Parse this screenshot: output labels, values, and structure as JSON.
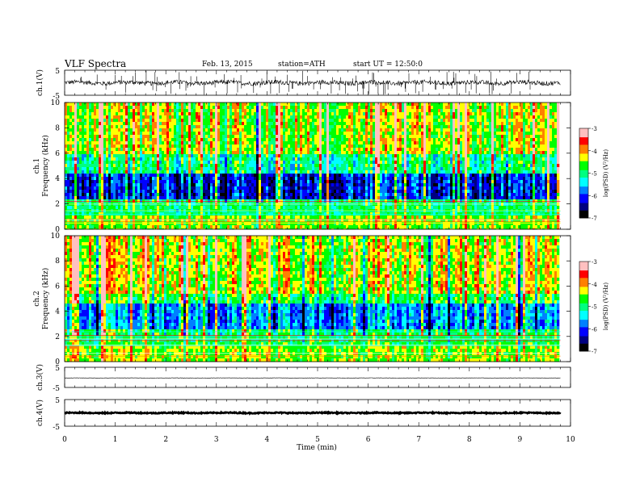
{
  "header": {
    "title": "VLF Spectra",
    "date": "Feb. 13, 2015",
    "station": "station=ATH",
    "start": "start UT =  12:50:0"
  },
  "x_axis": {
    "label": "Time (min)",
    "ticks": [
      "0",
      "1",
      "2",
      "3",
      "4",
      "5",
      "6",
      "7",
      "8",
      "9",
      "10"
    ],
    "range": [
      0,
      10
    ],
    "data_end": 9.8
  },
  "colors": {
    "ramp": [
      "#000000",
      "#000080",
      "#0000ff",
      "#0080ff",
      "#00ffff",
      "#00ff80",
      "#00ff00",
      "#ffff00",
      "#ff8000",
      "#ff0000",
      "#ffc0c0"
    ],
    "trace": "#000000",
    "background": "#ffffff"
  },
  "chart_data": [
    {
      "type": "line",
      "name": "ch.1 waveform",
      "ylabel": "ch.1(V)",
      "ylim": [
        -5,
        5
      ],
      "yticks": [
        "5",
        "-5"
      ],
      "baseline": 0,
      "amplitude": 0.9,
      "spikes": "frequent"
    },
    {
      "type": "heatmap",
      "name": "ch.1 spectrogram",
      "ylabel_top": "ch.1",
      "ylabel": "Frequency (kHz)",
      "ylim": [
        0,
        10
      ],
      "yticks": [
        "0",
        "2",
        "4",
        "6",
        "8",
        "10"
      ],
      "colorbar": {
        "label": "log(PSD) (V²/Hz)",
        "range": [
          -7,
          -3
        ],
        "ticks": [
          "-3",
          "-4",
          "-5",
          "-6",
          "-7"
        ]
      }
    },
    {
      "type": "heatmap",
      "name": "ch.2 spectrogram",
      "ylabel_top": "ch.2",
      "ylabel": "Frequency (kHz)",
      "ylim": [
        0,
        10
      ],
      "yticks": [
        "0",
        "2",
        "4",
        "6",
        "8",
        "10"
      ],
      "colorbar": {
        "label": "log(PSD) (V²/Hz)",
        "range": [
          -7,
          -3
        ],
        "ticks": [
          "-3",
          "-4",
          "-5",
          "-6",
          "-7"
        ]
      }
    },
    {
      "type": "line",
      "name": "ch.3 waveform",
      "ylabel": "ch.3(V)",
      "ylim": [
        -5,
        5
      ],
      "yticks": [
        "5",
        "-5"
      ],
      "baseline": -0.3,
      "amplitude": 0.08,
      "spikes": "none"
    },
    {
      "type": "line",
      "name": "ch.4 waveform",
      "ylabel": "ch.4(V)",
      "ylim": [
        -5,
        5
      ],
      "yticks": [
        "5",
        "-5"
      ],
      "baseline": 0,
      "amplitude": 0.2,
      "spikes": "none"
    }
  ]
}
